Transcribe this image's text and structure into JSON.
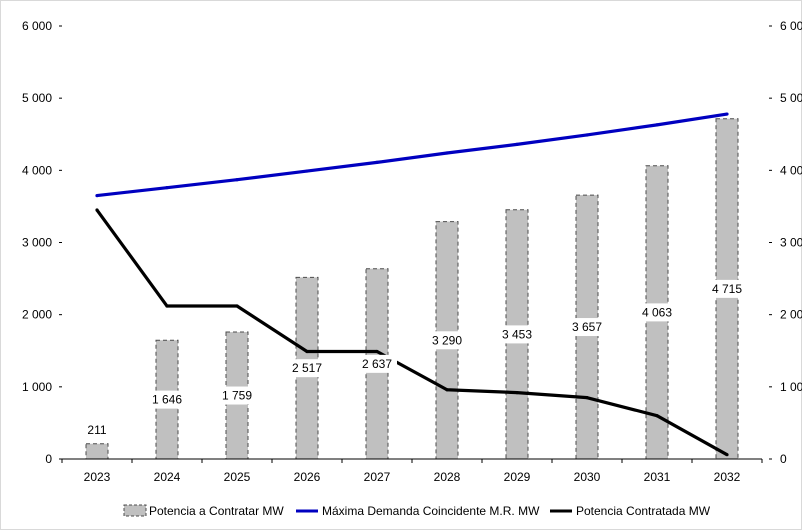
{
  "chart_data": {
    "type": "bar",
    "categories": [
      "2023",
      "2024",
      "2025",
      "2026",
      "2027",
      "2028",
      "2029",
      "2030",
      "2031",
      "2032"
    ],
    "ylim": [
      0,
      6000
    ],
    "yticks": [
      "0",
      "1 000",
      "2 000",
      "3 000",
      "4 000",
      "5 000",
      "6 000"
    ],
    "ytick_values": [
      0,
      1000,
      2000,
      3000,
      4000,
      5000,
      6000
    ],
    "grid": false,
    "legend_position": "bottom",
    "series": [
      {
        "name": "Potencia a Contratar MW",
        "type": "bar",
        "color": "#c0c0c0",
        "values": [
          211,
          1646,
          1759,
          2517,
          2637,
          3290,
          3453,
          3657,
          4063,
          4715
        ],
        "labels": [
          "211",
          "1 646",
          "1 759",
          "2 517",
          "2 637",
          "3 290",
          "3 453",
          "3 657",
          "4 063",
          "4 715"
        ]
      },
      {
        "name": "Máxima Demanda Coincidente M.R. MW",
        "type": "line",
        "color": "#0000c0",
        "values": [
          3650,
          3760,
          3870,
          3990,
          4110,
          4240,
          4360,
          4490,
          4630,
          4780
        ]
      },
      {
        "name": "Potencia Contratada MW",
        "type": "line",
        "color": "#000000",
        "values": [
          3450,
          2120,
          2120,
          1490,
          1490,
          960,
          920,
          850,
          600,
          60
        ]
      }
    ]
  }
}
